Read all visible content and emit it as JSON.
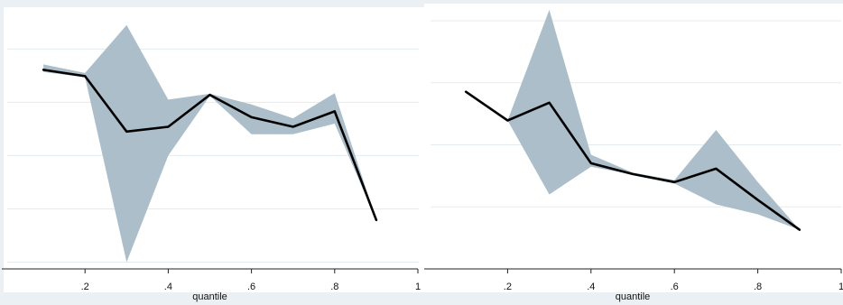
{
  "chart_data": [
    {
      "type": "line",
      "title": "",
      "xlabel": "quantile",
      "ylabel": "",
      "xlim": [
        0,
        1
      ],
      "ylim": [
        0,
        5.2
      ],
      "x_ticks": [
        0.2,
        0.4,
        0.6,
        0.8,
        1
      ],
      "x_tick_labels": [
        ".2",
        ".4",
        ".6",
        ".8",
        "1"
      ],
      "y_gridlines": [
        0.5,
        1.5,
        2.5,
        3.5,
        4.5
      ],
      "grid": true,
      "series": [
        {
          "role": "estimate",
          "color": "#000000",
          "x": [
            0.1,
            0.2,
            0.3,
            0.4,
            0.5,
            0.6,
            0.7,
            0.8,
            0.9
          ],
          "values": [
            4.11,
            3.99,
            2.95,
            3.04,
            3.64,
            3.22,
            3.04,
            3.33,
            1.29
          ]
        },
        {
          "role": "confidence-band",
          "color": "#a7bac7",
          "x": [
            0.1,
            0.2,
            0.3,
            0.4,
            0.5,
            0.6,
            0.7,
            0.8,
            0.9
          ],
          "lower": [
            4.07,
            3.97,
            0.5,
            2.5,
            3.62,
            2.9,
            2.9,
            3.1,
            1.29
          ],
          "upper": [
            4.21,
            4.05,
            4.95,
            3.55,
            3.66,
            3.46,
            3.2,
            3.67,
            1.29
          ]
        }
      ]
    },
    {
      "type": "line",
      "title": "",
      "xlabel": "quantile",
      "ylabel": "",
      "xlim": [
        0,
        1
      ],
      "ylim": [
        0,
        5.2
      ],
      "x_ticks": [
        0.2,
        0.4,
        0.6,
        0.8,
        1
      ],
      "x_tick_labels": [
        ".2",
        ".4",
        ".6",
        ".8",
        "1"
      ],
      "y_gridlines": [
        1.25,
        2.5,
        3.75,
        5
      ],
      "grid": true,
      "series": [
        {
          "role": "estimate",
          "color": "#000000",
          "x": [
            0.1,
            0.2,
            0.3,
            0.4,
            0.5,
            0.6,
            0.7,
            0.8,
            0.9
          ],
          "values": [
            3.57,
            2.99,
            3.35,
            2.13,
            1.91,
            1.75,
            2.02,
            1.39,
            0.79
          ]
        },
        {
          "role": "confidence-band",
          "color": "#a7bac7",
          "x": [
            0.1,
            0.2,
            0.3,
            0.4,
            0.5,
            0.6,
            0.7,
            0.8,
            0.9
          ],
          "lower": [
            3.57,
            2.99,
            1.5,
            2.06,
            1.9,
            1.72,
            1.3,
            1.1,
            0.79
          ],
          "upper": [
            3.57,
            2.99,
            5.22,
            2.3,
            1.94,
            1.79,
            2.8,
            1.75,
            0.79
          ]
        }
      ]
    }
  ]
}
